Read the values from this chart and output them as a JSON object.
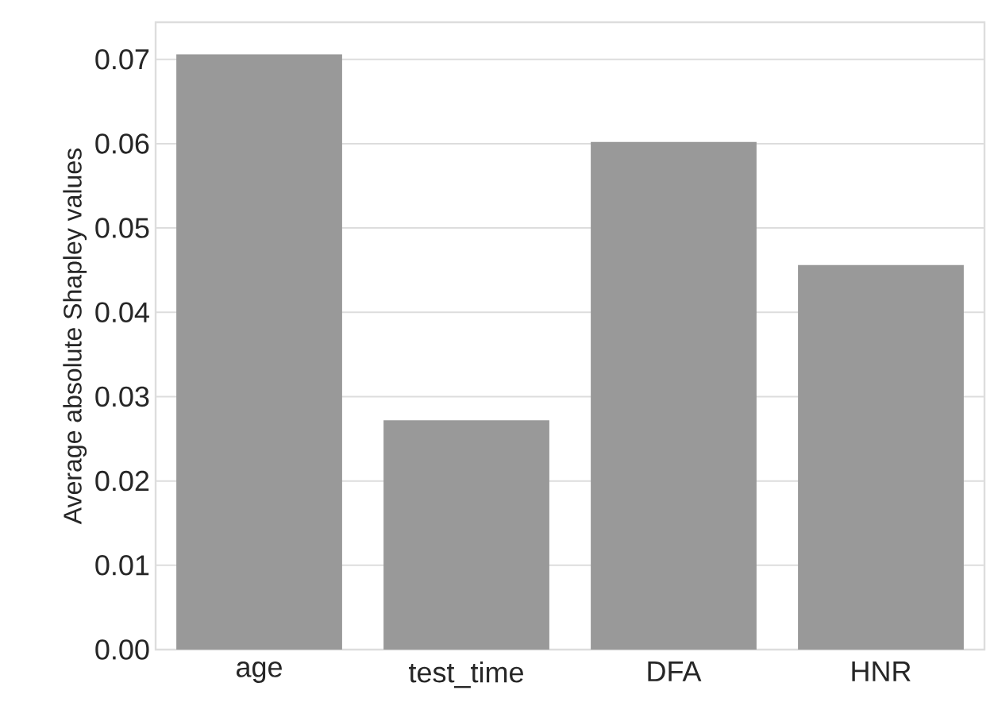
{
  "chart_data": {
    "type": "bar",
    "ylabel": "Average absolute Shapley values",
    "categories": [
      "age",
      "test_time",
      "DFA",
      "HNR"
    ],
    "values": [
      0.0706,
      0.0272,
      0.0602,
      0.0456
    ],
    "color": "#999999",
    "ylim": [
      0,
      0.0744
    ],
    "yticks": [
      {
        "value": 0,
        "label": "0.00"
      },
      {
        "value": 0.01,
        "label": "0.01"
      },
      {
        "value": 0.02,
        "label": "0.02"
      },
      {
        "value": 0.03,
        "label": "0.03"
      },
      {
        "value": 0.04,
        "label": "0.04"
      },
      {
        "value": 0.05,
        "label": "0.05"
      },
      {
        "value": 0.06,
        "label": "0.06"
      },
      {
        "value": 0.07,
        "label": "0.07"
      }
    ],
    "grid": "y"
  }
}
